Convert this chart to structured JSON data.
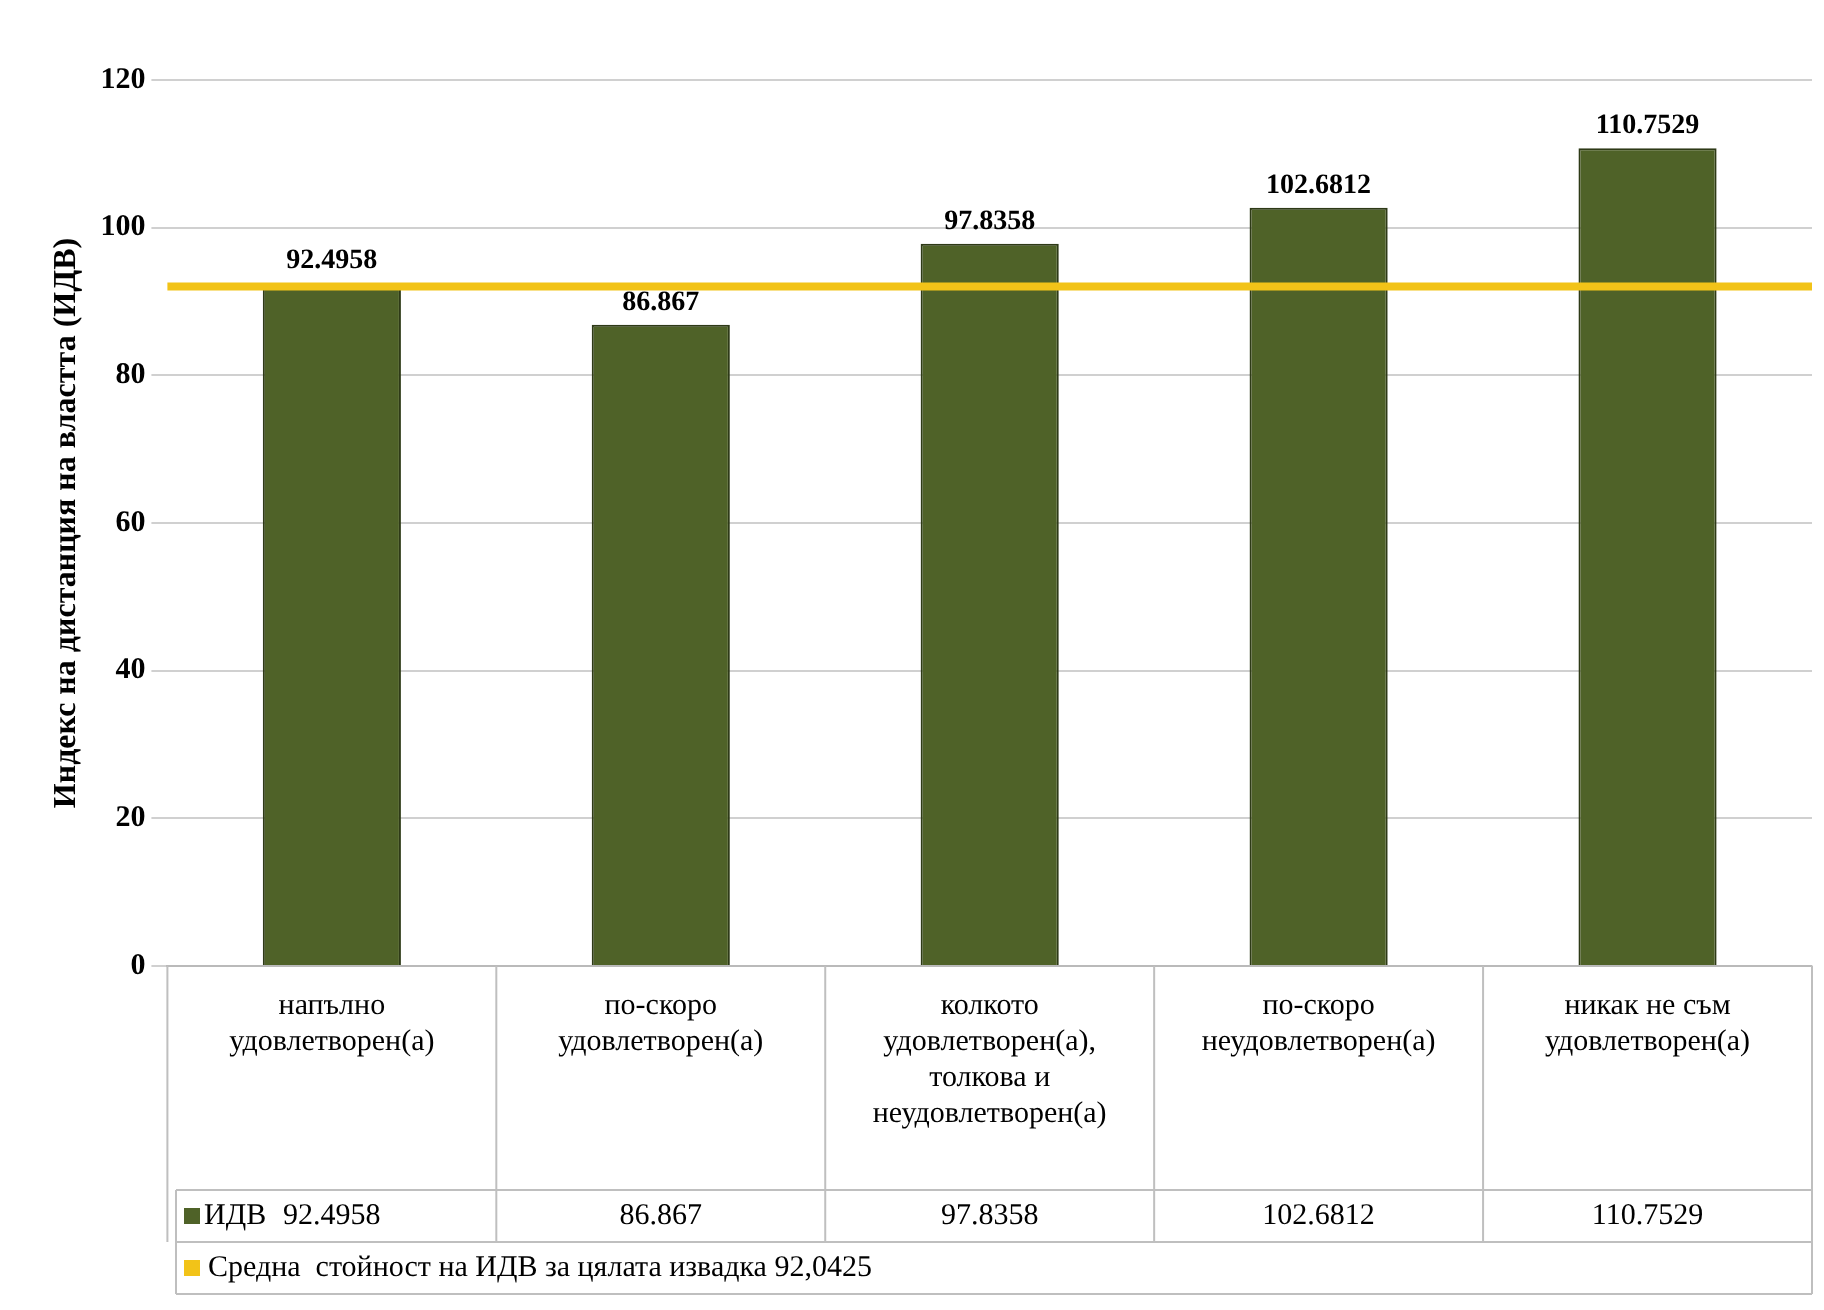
{
  "chart_data": {
    "type": "bar",
    "ylabel": "Индекс на дистанция на властта (ИДВ)",
    "categories": [
      "напълно удовлетворен(а)",
      "по-скоро удовлетворен(а)",
      "колкото удовлетворен(а), толкова и неудовлетворен(а)",
      "по-скоро неудовлетворен(а)",
      "никак не съм удовлетворен(а)"
    ],
    "series": [
      {
        "name": "ИДВ",
        "color": "#4f6228",
        "values": [
          92.4958,
          86.867,
          97.8358,
          102.6812,
          110.7529
        ]
      }
    ],
    "ylim": [
      0,
      120
    ],
    "yticks": [
      0,
      20,
      40,
      60,
      80,
      100,
      120
    ],
    "grid": "y",
    "data_labels": true,
    "legend": "bottom",
    "annotations": [
      {
        "text": "92.4958",
        "x": "напълно удовлетворен(а)",
        "y": 92.4958
      },
      {
        "text": "86.867",
        "x": "по-скоро удовлетворен(а)",
        "y": 86.867
      },
      {
        "text": "97.8358",
        "x": "колкото удовлетворен(а), толкова и неудовлетворен(а)",
        "y": 97.8358
      },
      {
        "text": "102.6812",
        "x": "по-скоро неудовлетворен(а)",
        "y": 102.6812
      },
      {
        "text": "110.7529",
        "x": "никак не съм удовлетворен(а)",
        "y": 110.7529
      }
    ],
    "ref_lines": [
      {
        "axis": "y",
        "value": 92.0425,
        "label": "Средна  стойност на ИДВ за цялата извадка 92,0425",
        "color": "#f2c318"
      }
    ]
  }
}
